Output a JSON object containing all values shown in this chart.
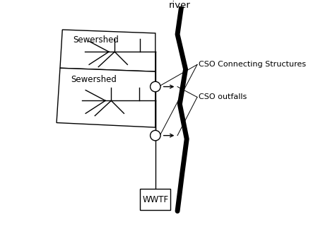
{
  "bg_color": "#ffffff",
  "line_color": "#000000",
  "text_color": "#000000",
  "river_label": "river",
  "sewershed_label": "Sewershed",
  "cso_structures_label": "CSO Connecting Structures",
  "cso_outfalls_label": "CSO outfalls",
  "wwtf_label": "WWTF",
  "figsize": [
    4.74,
    3.38
  ],
  "dpi": 100,
  "xlim": [
    0,
    10
  ],
  "ylim": [
    0,
    10
  ]
}
